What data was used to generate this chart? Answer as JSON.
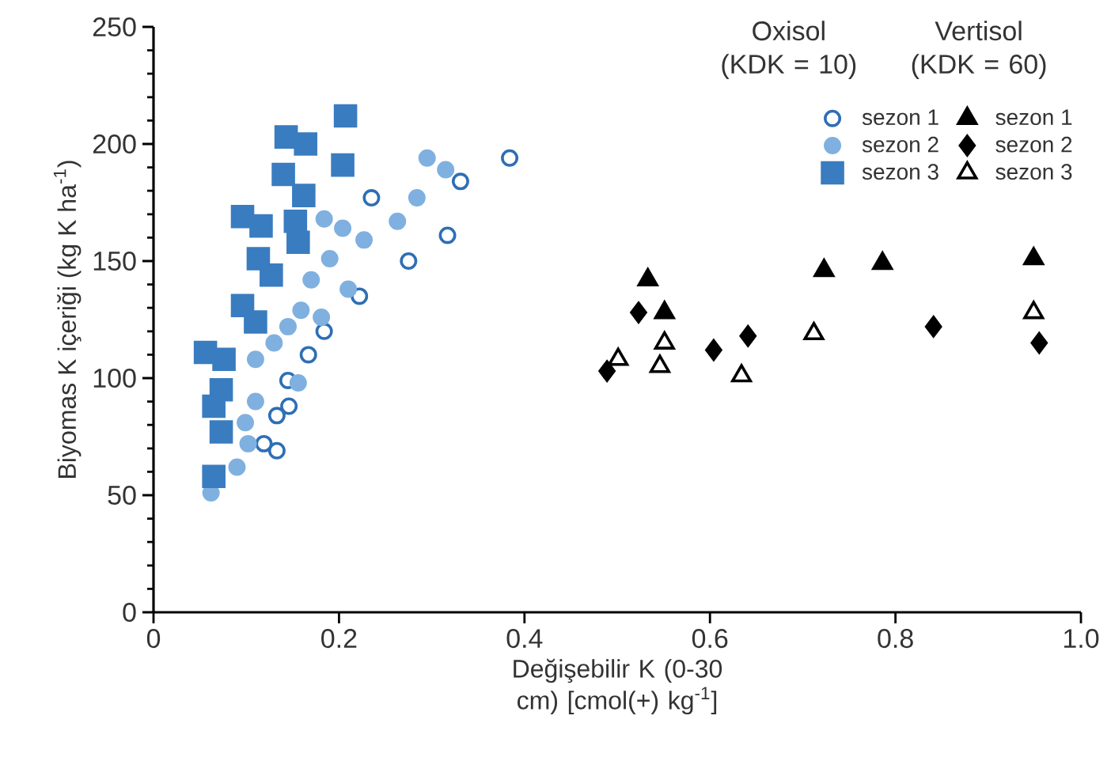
{
  "chart_data": {
    "type": "scatter",
    "xlabel": "Değişebilir K (0-30 cm) [cmol(+) kg$^{-1}$]",
    "ylabel": "Biyomas K içeriği (kg K ha$^{-1}$)",
    "annotations": [
      "Oxisol (KDK = 10)",
      "Vertisol (KDK = 60)"
    ],
    "xlim": [
      0,
      1
    ],
    "ylim": [
      0,
      250
    ],
    "xticks": [
      0,
      0.2,
      0.4,
      0.6,
      0.8,
      {
        "value": 1,
        "label": "1.0"
      }
    ],
    "yticks": [
      0,
      50,
      100,
      150,
      200,
      250
    ],
    "grid": false,
    "legend": "top right",
    "series": [
      {
        "name": "sezon 1",
        "color": "#2e6eb5",
        "marker": "open circle",
        "x": [
          0.384,
          0.331,
          0.317,
          0.275,
          0.235,
          0.222,
          0.184,
          0.167,
          0.145,
          0.146,
          0.133,
          0.119,
          0.133
        ],
        "values": [
          194,
          184,
          161,
          150,
          177,
          135,
          120,
          110,
          99,
          88,
          84,
          72,
          69
        ]
      },
      {
        "name": "sezon 2",
        "color": "#7fb0e0",
        "marker": "circle",
        "x": [
          0.295,
          0.315,
          0.284,
          0.263,
          0.227,
          0.204,
          0.184,
          0.19,
          0.17,
          0.21,
          0.181,
          0.159,
          0.145,
          0.13,
          0.11,
          0.156,
          0.11,
          0.099,
          0.102,
          0.09,
          0.062
        ],
        "values": [
          194,
          189,
          177,
          167,
          159,
          164,
          168,
          151,
          142,
          138,
          126,
          129,
          122,
          115,
          108,
          98,
          90,
          81,
          72,
          62,
          51
        ]
      },
      {
        "name": "sezon 3",
        "color": "#3a7cc0",
        "marker": "square",
        "x": [
          0.207,
          0.204,
          0.143,
          0.164,
          0.14,
          0.162,
          0.153,
          0.156,
          0.096,
          0.116,
          0.113,
          0.127,
          0.096,
          0.11,
          0.056,
          0.076,
          0.073,
          0.065,
          0.073,
          0.065
        ],
        "values": [
          212,
          191,
          203,
          200,
          187,
          178,
          167,
          158,
          169,
          165,
          151,
          144,
          131,
          124,
          111,
          108,
          95,
          88,
          77,
          58
        ]
      },
      {
        "name": "sezon 1",
        "color": "#000000",
        "marker": "triangle",
        "x": [
          0.533,
          0.551,
          0.723,
          0.786,
          0.949
        ],
        "values": [
          142,
          128,
          146,
          149,
          151
        ]
      },
      {
        "name": "sezon 2",
        "color": "#000000",
        "marker": "diamond",
        "x": [
          0.523,
          0.489,
          0.604,
          0.641,
          0.841,
          0.955
        ],
        "values": [
          128,
          103,
          112,
          118,
          122,
          115
        ]
      },
      {
        "name": "sezon 3",
        "color": "#000000",
        "marker": "triangle",
        "x": [
          0.501,
          0.551,
          0.546,
          0.634,
          0.712,
          0.949
        ],
        "values": [
          108,
          115,
          105,
          101,
          119,
          128
        ]
      }
    ]
  }
}
